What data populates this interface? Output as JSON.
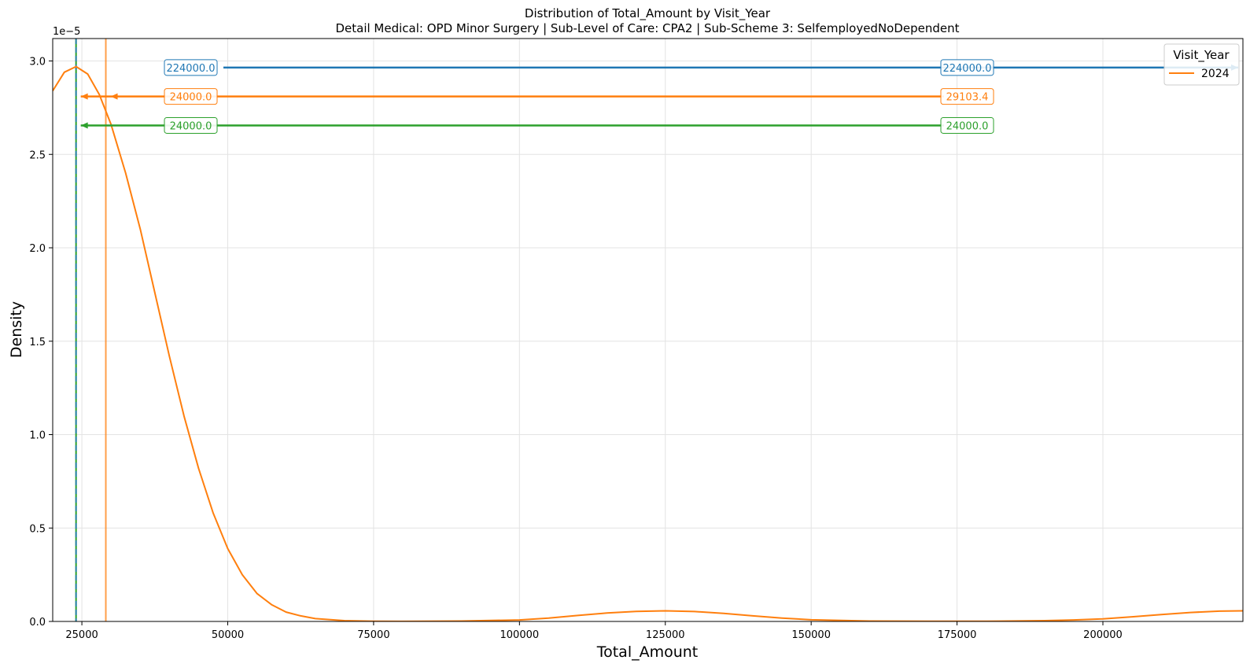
{
  "chart_data": {
    "type": "line",
    "title": "Distribution of Total_Amount by Visit_Year",
    "subtitle": "Detail Medical: OPD Minor Surgery | Sub-Level of Care: CPA2 | Sub-Scheme 3: SelfemployedNoDependent",
    "xlabel": "Total_Amount",
    "ylabel": "Density",
    "y_scale_label": "1e−5",
    "y_multiplier": 1e-05,
    "xlim": [
      20000,
      224000
    ],
    "ylim": [
      0,
      3.12
    ],
    "x_ticks": [
      25000,
      50000,
      75000,
      100000,
      125000,
      150000,
      175000,
      200000
    ],
    "x_tick_labels": [
      "25000",
      "50000",
      "75000",
      "100000",
      "125000",
      "150000",
      "175000",
      "200000"
    ],
    "y_ticks": [
      0,
      0.5,
      1.0,
      1.5,
      2.0,
      2.5,
      3.0
    ],
    "y_tick_labels": [
      "0.0",
      "0.5",
      "1.0",
      "1.5",
      "2.0",
      "2.5",
      "3.0"
    ],
    "grid": true,
    "legend": {
      "title": "Visit_Year",
      "placement": "top-right",
      "entries": [
        {
          "label": "2024",
          "color": "#ff7f0e"
        }
      ]
    },
    "series": [
      {
        "name": "2024",
        "color": "#ff7f0e",
        "x": [
          20000,
          22000,
          24000,
          26000,
          28000,
          30000,
          32500,
          35000,
          37500,
          40000,
          42500,
          45000,
          47500,
          50000,
          52500,
          55000,
          57500,
          60000,
          62500,
          65000,
          70000,
          75000,
          80000,
          90000,
          100000,
          105000,
          110000,
          115000,
          120000,
          125000,
          130000,
          135000,
          140000,
          145000,
          150000,
          160000,
          170000,
          180000,
          190000,
          195000,
          200000,
          205000,
          210000,
          215000,
          220000,
          224000
        ],
        "y": [
          2.84,
          2.94,
          2.97,
          2.93,
          2.82,
          2.66,
          2.4,
          2.1,
          1.76,
          1.42,
          1.1,
          0.82,
          0.58,
          0.39,
          0.25,
          0.15,
          0.09,
          0.05,
          0.03,
          0.015,
          0.004,
          0.001,
          0.0005,
          0.002,
          0.008,
          0.018,
          0.032,
          0.045,
          0.054,
          0.057,
          0.053,
          0.043,
          0.03,
          0.018,
          0.009,
          0.002,
          0.001,
          0.001,
          0.004,
          0.008,
          0.014,
          0.025,
          0.037,
          0.048,
          0.055,
          0.057
        ]
      }
    ],
    "vertical_lines": [
      {
        "x": 24000,
        "color": "#2ca02c",
        "style": "solid"
      },
      {
        "x": 24000,
        "color": "#1f77b4",
        "style": "dashed"
      },
      {
        "x": 29103.4,
        "color": "#ff7f0e",
        "style": "solid"
      }
    ],
    "annotations": [
      {
        "y": 2.965,
        "x_from": 224000,
        "x_to": 224000,
        "color": "#1f77b4",
        "label_left": "224000.0",
        "label_right": "224000.0"
      },
      {
        "y": 2.81,
        "x_from": 29103.4,
        "x_to": 24000,
        "color": "#ff7f0e",
        "label_left": "24000.0",
        "label_right": "29103.4"
      },
      {
        "y": 2.655,
        "x_from": 24000,
        "x_to": 24000,
        "color": "#2ca02c",
        "label_left": "24000.0",
        "label_right": "24000.0"
      }
    ]
  }
}
